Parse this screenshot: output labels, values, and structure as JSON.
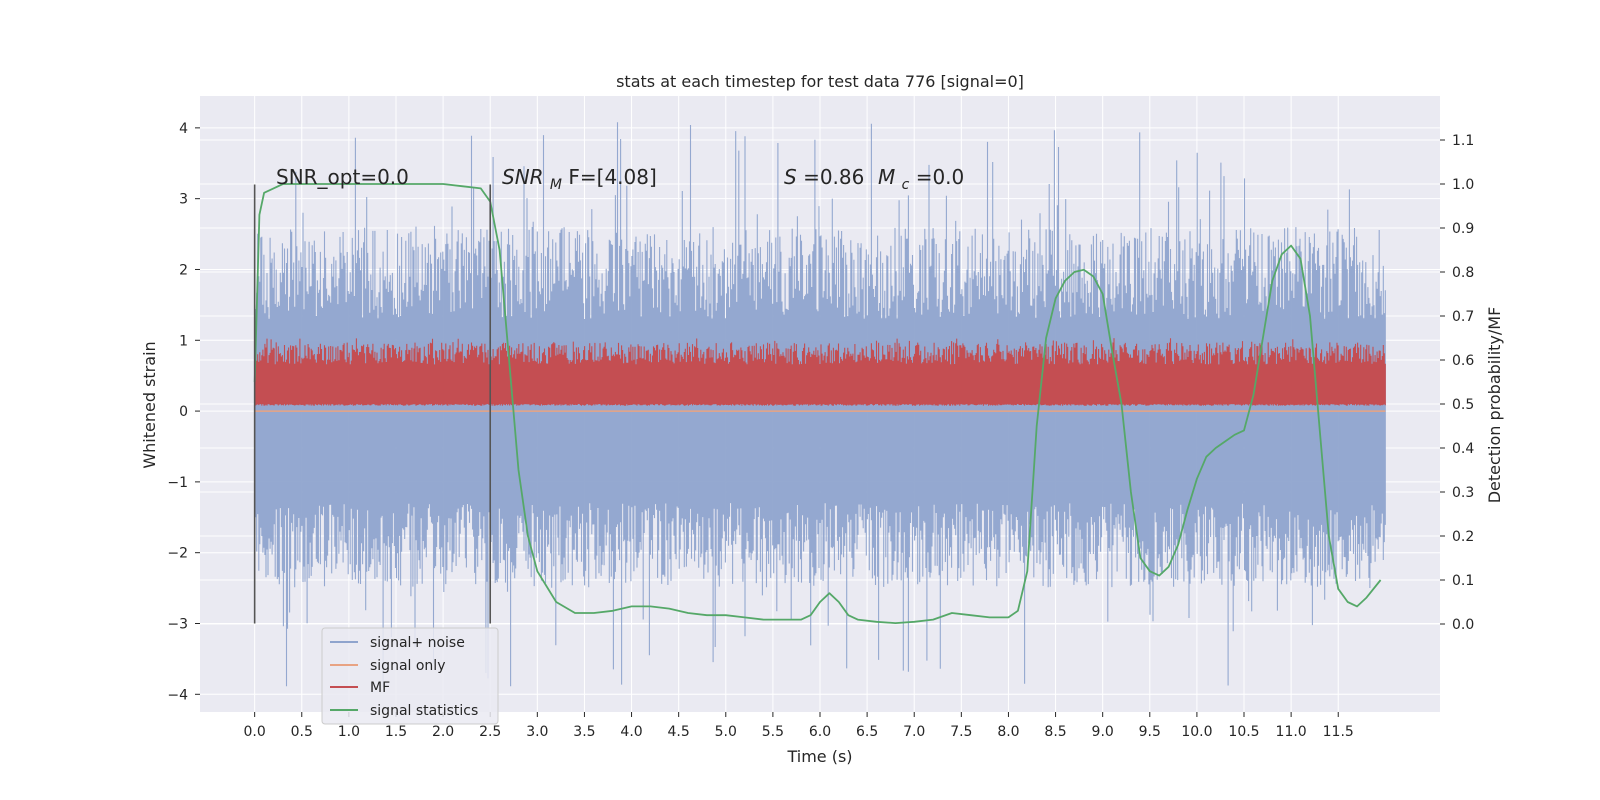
{
  "chart_data": {
    "type": "line",
    "title": "stats at each timestep for test data 776 [signal=0]",
    "xlabel": "Time (s)",
    "ylabel": "Whitened strain",
    "y2label": "Detection probability/MF",
    "xlim": [
      -0.58,
      12.58
    ],
    "ylim": [
      -4.25,
      4.45
    ],
    "y2lim": [
      -0.2,
      1.2
    ],
    "x_ticks": [
      0.0,
      0.5,
      1.0,
      1.5,
      2.0,
      2.5,
      3.0,
      3.5,
      4.0,
      4.5,
      5.0,
      5.5,
      6.0,
      6.5,
      7.0,
      7.5,
      8.0,
      8.5,
      9.0,
      9.5,
      10.0,
      10.5,
      11.0,
      11.5
    ],
    "x_tick_labels": [
      "0.0",
      "0.5",
      "1.0",
      "1.5",
      "2.0",
      "2.5",
      "3.0",
      "3.5",
      "4.0",
      "4.5",
      "5.0",
      "5.5",
      "6.0",
      "6.5",
      "7.0",
      "7.5",
      "8.0",
      "8.5",
      "9.0",
      "9.5",
      "10.0",
      "10.5",
      "11.0",
      "11.5"
    ],
    "y_ticks": [
      -4,
      -3,
      -2,
      -1,
      0,
      1,
      2,
      3,
      4
    ],
    "y_tick_labels": [
      "−4",
      "−3",
      "−2",
      "−1",
      "0",
      "1",
      "2",
      "3",
      "4"
    ],
    "y2_ticks": [
      0.0,
      0.1,
      0.2,
      0.3,
      0.4,
      0.5,
      0.6,
      0.7,
      0.8,
      0.9,
      1.0,
      1.1
    ],
    "y2_tick_labels": [
      "0.0",
      "0.1",
      "0.2",
      "0.3",
      "0.4",
      "0.5",
      "0.6",
      "0.7",
      "0.8",
      "0.9",
      "1.0",
      "1.1"
    ],
    "grid": true,
    "legend_position": "lower-left",
    "annotations": {
      "snr_opt": "SNR_opt=0.0",
      "snr_mf_main": "SNR",
      "snr_mf_sub": "M",
      "snr_mf_rest": "F=[4.08]",
      "s_symbol": "S",
      "s_value": "=0.86",
      "mc_symbol": "M",
      "mc_sub": "c",
      "mc_value": "=0.0"
    },
    "markers_x": [
      0.0,
      2.5
    ],
    "markers_y_range": [
      -3.0,
      3.2
    ],
    "colors": {
      "signal_noise": "#8fa4cd",
      "signal_only": "#e8a383",
      "mf": "#c44e52",
      "statistics": "#55a868",
      "background": "#eaeaf2",
      "marker": "#555555"
    },
    "series": [
      {
        "name": "signal+ noise",
        "axis": "left",
        "style": "dense-noise",
        "x_range": [
          0.0,
          12.0
        ],
        "envelope": {
          "typical_abs": 1.3,
          "peak_max": 4.1,
          "peak_min": -3.9
        }
      },
      {
        "name": "signal only",
        "axis": "left",
        "style": "line",
        "x": [
          0.0,
          12.0
        ],
        "y": [
          0.0,
          0.0
        ]
      },
      {
        "name": "MF",
        "axis": "right",
        "style": "dense-noise",
        "x_range": [
          0.0,
          12.0
        ],
        "envelope": {
          "low": 0.5,
          "high": 0.62,
          "peak_max": 0.65
        }
      },
      {
        "name": "signal statistics",
        "axis": "right",
        "style": "line",
        "x": [
          0.0,
          0.05,
          0.1,
          0.2,
          0.3,
          0.5,
          1.0,
          1.5,
          2.0,
          2.2,
          2.4,
          2.5,
          2.6,
          2.7,
          2.8,
          2.9,
          3.0,
          3.2,
          3.4,
          3.6,
          3.8,
          4.0,
          4.2,
          4.4,
          4.6,
          4.8,
          5.0,
          5.2,
          5.4,
          5.6,
          5.8,
          5.9,
          6.0,
          6.1,
          6.2,
          6.3,
          6.4,
          6.6,
          6.8,
          7.0,
          7.2,
          7.4,
          7.6,
          7.8,
          8.0,
          8.1,
          8.2,
          8.3,
          8.4,
          8.5,
          8.6,
          8.7,
          8.8,
          8.9,
          9.0,
          9.1,
          9.2,
          9.3,
          9.4,
          9.5,
          9.6,
          9.7,
          9.8,
          9.9,
          10.0,
          10.1,
          10.2,
          10.3,
          10.4,
          10.5,
          10.6,
          10.7,
          10.8,
          10.9,
          11.0,
          11.1,
          11.2,
          11.3,
          11.4,
          11.5,
          11.6,
          11.7,
          11.8,
          11.95
        ],
        "y": [
          0.55,
          0.93,
          0.98,
          0.99,
          1.0,
          1.0,
          1.0,
          1.0,
          1.0,
          0.995,
          0.99,
          0.96,
          0.85,
          0.6,
          0.35,
          0.2,
          0.12,
          0.05,
          0.025,
          0.025,
          0.03,
          0.04,
          0.04,
          0.035,
          0.025,
          0.02,
          0.02,
          0.015,
          0.01,
          0.01,
          0.01,
          0.02,
          0.05,
          0.07,
          0.05,
          0.02,
          0.01,
          0.005,
          0.002,
          0.005,
          0.01,
          0.025,
          0.02,
          0.015,
          0.015,
          0.03,
          0.12,
          0.45,
          0.65,
          0.74,
          0.78,
          0.8,
          0.805,
          0.79,
          0.75,
          0.62,
          0.5,
          0.3,
          0.15,
          0.12,
          0.11,
          0.13,
          0.18,
          0.26,
          0.33,
          0.38,
          0.4,
          0.415,
          0.43,
          0.44,
          0.52,
          0.65,
          0.78,
          0.84,
          0.86,
          0.83,
          0.7,
          0.45,
          0.2,
          0.08,
          0.05,
          0.04,
          0.06,
          0.1
        ]
      }
    ]
  }
}
